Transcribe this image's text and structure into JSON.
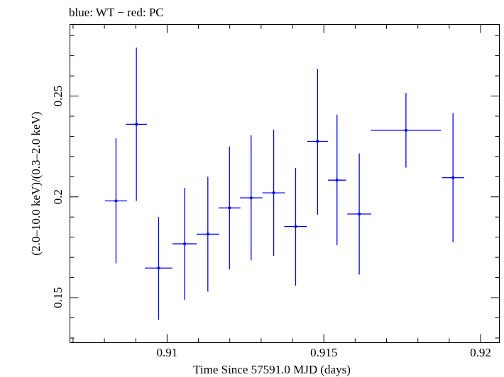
{
  "chart_data": {
    "type": "scatter",
    "title": "blue: WT − red: PC",
    "xlabel": "Time Since 57591.0 MJD (days)",
    "ylabel": "(2.0–10.0 keV)/(0.3–2.0 keV)",
    "xlim": [
      0.9069,
      0.9206
    ],
    "ylim": [
      0.1277,
      0.2855
    ],
    "x_ticks": [
      0.91,
      0.915,
      0.92
    ],
    "x_tick_labels": [
      "0.91",
      "0.915",
      "0.92"
    ],
    "y_ticks": [
      0.15,
      0.2,
      0.25
    ],
    "y_tick_labels": [
      "0.15",
      "0.2",
      "0.25"
    ],
    "series": [
      {
        "name": "WT",
        "color": "#0000ff",
        "points": [
          {
            "x": 0.90837,
            "xerr": 0.00035,
            "y": 0.198,
            "yerr_lo": 0.031,
            "yerr_hi": 0.031
          },
          {
            "x": 0.90902,
            "xerr": 0.00034,
            "y": 0.236,
            "yerr_lo": 0.038,
            "yerr_hi": 0.038
          },
          {
            "x": 0.90973,
            "xerr": 0.00044,
            "y": 0.1647,
            "yerr_lo": 0.0257,
            "yerr_hi": 0.0253
          },
          {
            "x": 0.91056,
            "xerr": 0.00039,
            "y": 0.1767,
            "yerr_lo": 0.0277,
            "yerr_hi": 0.0277
          },
          {
            "x": 0.9113,
            "xerr": 0.00036,
            "y": 0.1815,
            "yerr_lo": 0.0285,
            "yerr_hi": 0.0285
          },
          {
            "x": 0.91199,
            "xerr": 0.00035,
            "y": 0.1945,
            "yerr_lo": 0.0305,
            "yerr_hi": 0.0305
          },
          {
            "x": 0.91268,
            "xerr": 0.00036,
            "y": 0.1995,
            "yerr_lo": 0.031,
            "yerr_hi": 0.031
          },
          {
            "x": 0.9134,
            "xerr": 0.00036,
            "y": 0.202,
            "yerr_lo": 0.0313,
            "yerr_hi": 0.0313
          },
          {
            "x": 0.9141,
            "xerr": 0.00036,
            "y": 0.1853,
            "yerr_lo": 0.0293,
            "yerr_hi": 0.029
          },
          {
            "x": 0.9148,
            "xerr": 0.00033,
            "y": 0.2275,
            "yerr_lo": 0.0363,
            "yerr_hi": 0.036
          },
          {
            "x": 0.91542,
            "xerr": 0.00029,
            "y": 0.2083,
            "yerr_lo": 0.0323,
            "yerr_hi": 0.0325
          },
          {
            "x": 0.91613,
            "xerr": 0.00038,
            "y": 0.1915,
            "yerr_lo": 0.03,
            "yerr_hi": 0.03
          },
          {
            "x": 0.91762,
            "xerr": 0.00112,
            "y": 0.233,
            "yerr_lo": 0.0185,
            "yerr_hi": 0.0185
          },
          {
            "x": 0.91912,
            "xerr": 0.00036,
            "y": 0.2095,
            "yerr_lo": 0.032,
            "yerr_hi": 0.032
          }
        ]
      }
    ]
  }
}
